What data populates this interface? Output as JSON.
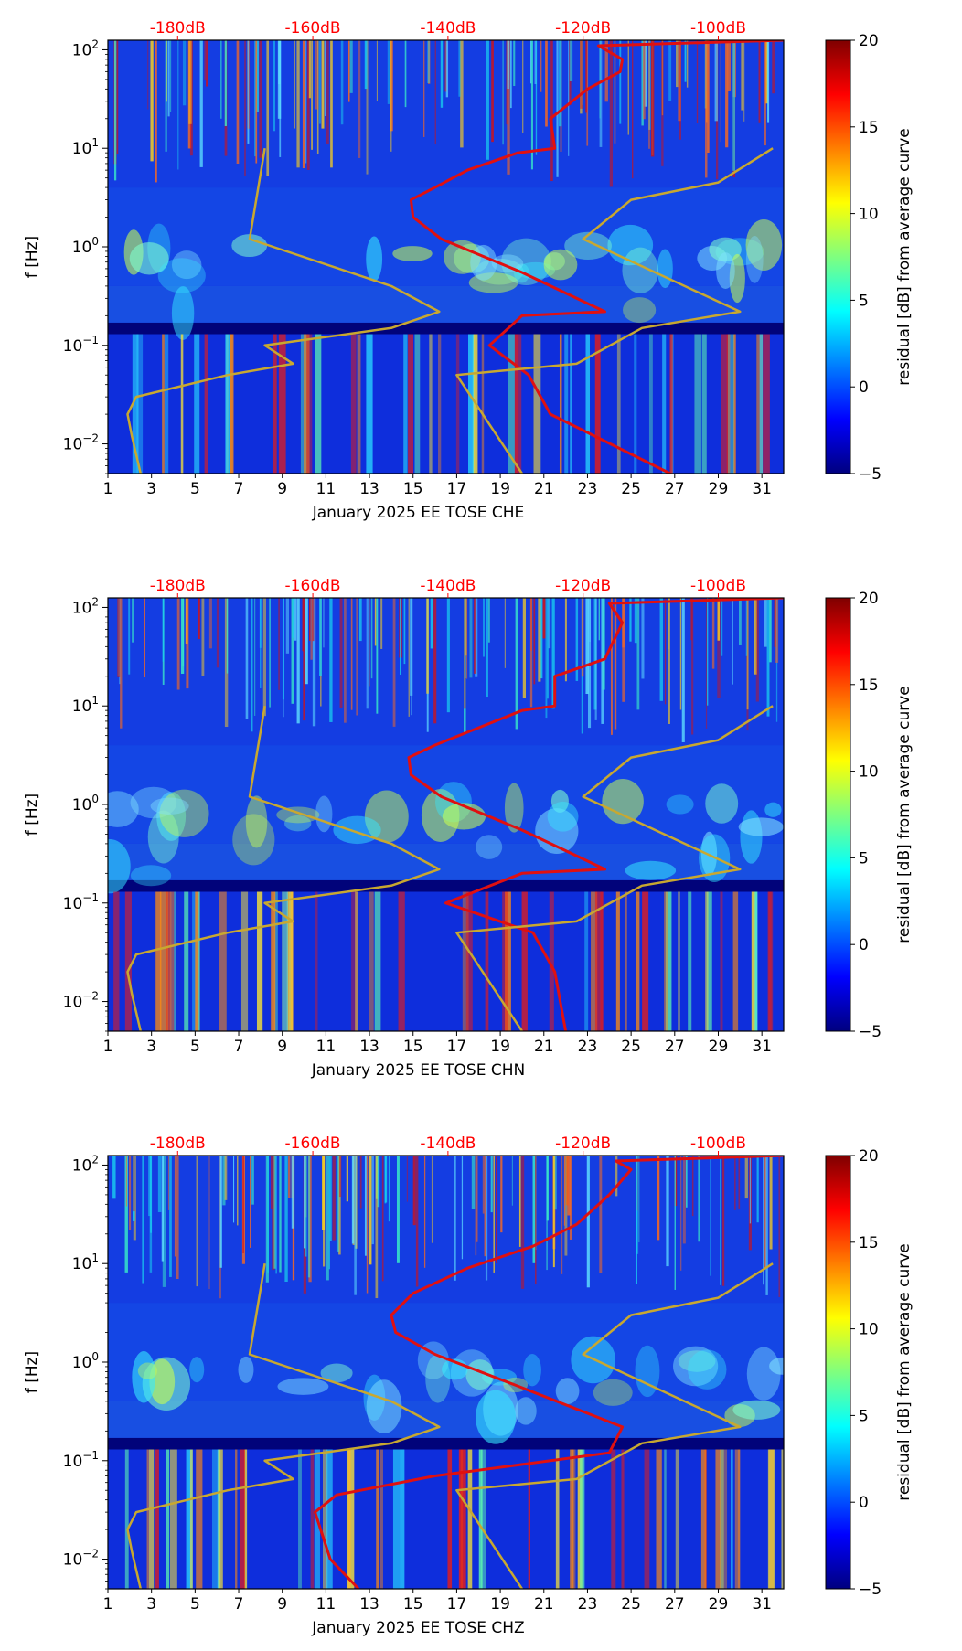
{
  "colors": {
    "top_axis_label": "#ff0000",
    "red_curve": "#e01010",
    "model_curve": "#c8a830",
    "colormap": [
      "#00007f",
      "#0000ff",
      "#007fff",
      "#00ffff",
      "#7fff7f",
      "#ffff00",
      "#ff7f00",
      "#ff0000",
      "#7f0000"
    ]
  },
  "chart_data": [
    {
      "type": "heatmap",
      "channel": "CHE",
      "xlabel": "January 2025 EE TOSE  CHE",
      "ylabel": "f [Hz]",
      "x_ticks": [
        "1",
        "3",
        "5",
        "7",
        "9",
        "11",
        "13",
        "15",
        "17",
        "19",
        "21",
        "23",
        "25",
        "27",
        "29",
        "31"
      ],
      "xlim": [
        1,
        32
      ],
      "y_scale": "log",
      "ylim": [
        0.005,
        125
      ],
      "y_ticks": [
        {
          "value": 0.01,
          "base": "10",
          "exp": "−2"
        },
        {
          "value": 0.1,
          "base": "10",
          "exp": "−1"
        },
        {
          "value": 1,
          "base": "10",
          "exp": "0"
        },
        {
          "value": 10,
          "base": "10",
          "exp": "1"
        },
        {
          "value": 100,
          "base": "10",
          "exp": "2"
        }
      ],
      "top_axis_ticks": [
        "-180dB",
        "-160dB",
        "-140dB",
        "-120dB",
        "-100dB"
      ],
      "top_axis_positions": [
        4.2,
        10.4,
        16.6,
        22.8,
        29.0
      ],
      "colorbar": {
        "label": "residual [dB] from average curve",
        "range": [
          -5,
          20
        ],
        "ticks": [
          "−5",
          "0",
          "5",
          "10",
          "15",
          "20"
        ]
      },
      "series": [
        {
          "name": "red curve",
          "points": [
            [
              26.8,
              0.005
            ],
            [
              21.3,
              0.02
            ],
            [
              20.3,
              0.05
            ],
            [
              18.5,
              0.1
            ],
            [
              20.0,
              0.2
            ],
            [
              23.8,
              0.22
            ],
            [
              20.0,
              0.55
            ],
            [
              16.3,
              1.2
            ],
            [
              15.0,
              2.0
            ],
            [
              14.9,
              3.0
            ],
            [
              16.0,
              4.0
            ],
            [
              17.5,
              6.0
            ],
            [
              19.8,
              9.0
            ],
            [
              21.5,
              10
            ],
            [
              21.3,
              20
            ],
            [
              23.0,
              40
            ],
            [
              24.5,
              60
            ],
            [
              24.6,
              80
            ],
            [
              23.5,
              110
            ],
            [
              32,
              125
            ]
          ]
        },
        {
          "name": "model curve",
          "points": [
            [
              2.5,
              0.005
            ],
            [
              2.1,
              0.012
            ],
            [
              1.9,
              0.02
            ],
            [
              2.3,
              0.03
            ],
            [
              6.5,
              0.05
            ],
            [
              9.5,
              0.065
            ],
            [
              8.2,
              0.1
            ],
            [
              14.0,
              0.15
            ],
            [
              16.2,
              0.22
            ],
            [
              14.0,
              0.4
            ],
            [
              7.5,
              1.2
            ],
            [
              8.2,
              10
            ],
            [
              null,
              null
            ],
            [
              20.0,
              0.005
            ],
            [
              17.0,
              0.05
            ],
            [
              22.5,
              0.065
            ],
            [
              25.5,
              0.15
            ],
            [
              30.0,
              0.22
            ],
            [
              22.8,
              1.2
            ],
            [
              25.0,
              3.0
            ],
            [
              29.0,
              4.5
            ],
            [
              31.5,
              10
            ]
          ]
        }
      ]
    },
    {
      "type": "heatmap",
      "channel": "CHN",
      "xlabel": "January 2025 EE TOSE  CHN",
      "ylabel": "f [Hz]",
      "x_ticks": [
        "1",
        "3",
        "5",
        "7",
        "9",
        "11",
        "13",
        "15",
        "17",
        "19",
        "21",
        "23",
        "25",
        "27",
        "29",
        "31"
      ],
      "xlim": [
        1,
        32
      ],
      "y_scale": "log",
      "ylim": [
        0.005,
        125
      ],
      "y_ticks": [
        {
          "value": 0.01,
          "base": "10",
          "exp": "−2"
        },
        {
          "value": 0.1,
          "base": "10",
          "exp": "−1"
        },
        {
          "value": 1,
          "base": "10",
          "exp": "0"
        },
        {
          "value": 10,
          "base": "10",
          "exp": "1"
        },
        {
          "value": 100,
          "base": "10",
          "exp": "2"
        }
      ],
      "top_axis_ticks": [
        "-180dB",
        "-160dB",
        "-140dB",
        "-120dB",
        "-100dB"
      ],
      "top_axis_positions": [
        4.2,
        10.4,
        16.6,
        22.8,
        29.0
      ],
      "colorbar": {
        "label": "residual [dB] from average curve",
        "range": [
          -5,
          20
        ],
        "ticks": [
          "−5",
          "0",
          "5",
          "10",
          "15",
          "20"
        ]
      },
      "series": [
        {
          "name": "red curve",
          "points": [
            [
              22.0,
              0.005
            ],
            [
              21.5,
              0.02
            ],
            [
              20.5,
              0.05
            ],
            [
              16.5,
              0.1
            ],
            [
              20.0,
              0.2
            ],
            [
              23.8,
              0.22
            ],
            [
              20.0,
              0.55
            ],
            [
              16.3,
              1.2
            ],
            [
              14.9,
              2.0
            ],
            [
              14.8,
              3.0
            ],
            [
              16.0,
              4.0
            ],
            [
              18.0,
              6.0
            ],
            [
              20.0,
              9.0
            ],
            [
              21.5,
              10
            ],
            [
              21.5,
              20
            ],
            [
              23.8,
              30
            ],
            [
              24.6,
              70
            ],
            [
              24.0,
              110
            ],
            [
              32,
              125
            ]
          ]
        },
        {
          "name": "model curve",
          "points": [
            [
              2.5,
              0.005
            ],
            [
              2.1,
              0.012
            ],
            [
              1.9,
              0.02
            ],
            [
              2.3,
              0.03
            ],
            [
              6.5,
              0.05
            ],
            [
              9.5,
              0.065
            ],
            [
              8.2,
              0.1
            ],
            [
              14.0,
              0.15
            ],
            [
              16.2,
              0.22
            ],
            [
              14.0,
              0.4
            ],
            [
              7.5,
              1.2
            ],
            [
              8.2,
              10
            ],
            [
              null,
              null
            ],
            [
              20.0,
              0.005
            ],
            [
              17.0,
              0.05
            ],
            [
              22.5,
              0.065
            ],
            [
              25.5,
              0.15
            ],
            [
              30.0,
              0.22
            ],
            [
              22.8,
              1.2
            ],
            [
              25.0,
              3.0
            ],
            [
              29.0,
              4.5
            ],
            [
              31.5,
              10
            ]
          ]
        }
      ]
    },
    {
      "type": "heatmap",
      "channel": "CHZ",
      "xlabel": "January 2025 EE TOSE  CHZ",
      "ylabel": "f [Hz]",
      "x_ticks": [
        "1",
        "3",
        "5",
        "7",
        "9",
        "11",
        "13",
        "15",
        "17",
        "19",
        "21",
        "23",
        "25",
        "27",
        "29",
        "31"
      ],
      "xlim": [
        1,
        32
      ],
      "y_scale": "log",
      "ylim": [
        0.005,
        125
      ],
      "y_ticks": [
        {
          "value": 0.01,
          "base": "10",
          "exp": "−2"
        },
        {
          "value": 0.1,
          "base": "10",
          "exp": "−1"
        },
        {
          "value": 1,
          "base": "10",
          "exp": "0"
        },
        {
          "value": 10,
          "base": "10",
          "exp": "1"
        },
        {
          "value": 100,
          "base": "10",
          "exp": "2"
        }
      ],
      "top_axis_ticks": [
        "-180dB",
        "-160dB",
        "-140dB",
        "-120dB",
        "-100dB"
      ],
      "top_axis_positions": [
        4.2,
        10.4,
        16.6,
        22.8,
        29.0
      ],
      "colorbar": {
        "label": "residual [dB] from average curve",
        "range": [
          -5,
          20
        ],
        "ticks": [
          "−5",
          "0",
          "5",
          "10",
          "15",
          "20"
        ]
      },
      "series": [
        {
          "name": "red curve",
          "points": [
            [
              12.5,
              0.005
            ],
            [
              11.2,
              0.01
            ],
            [
              10.5,
              0.03
            ],
            [
              11.5,
              0.045
            ],
            [
              16.0,
              0.07
            ],
            [
              24.0,
              0.12
            ],
            [
              24.6,
              0.22
            ],
            [
              20.0,
              0.55
            ],
            [
              16.0,
              1.2
            ],
            [
              14.2,
              2.0
            ],
            [
              14.0,
              3.0
            ],
            [
              15.0,
              5.0
            ],
            [
              17.5,
              9.0
            ],
            [
              20.5,
              15
            ],
            [
              22.5,
              25
            ],
            [
              24.0,
              50
            ],
            [
              25.0,
              90
            ],
            [
              24.3,
              110
            ],
            [
              32,
              125
            ]
          ]
        },
        {
          "name": "model curve",
          "points": [
            [
              2.5,
              0.005
            ],
            [
              2.1,
              0.012
            ],
            [
              1.9,
              0.02
            ],
            [
              2.3,
              0.03
            ],
            [
              6.5,
              0.05
            ],
            [
              9.5,
              0.065
            ],
            [
              8.2,
              0.1
            ],
            [
              14.0,
              0.15
            ],
            [
              16.2,
              0.22
            ],
            [
              14.0,
              0.4
            ],
            [
              7.5,
              1.2
            ],
            [
              8.2,
              10
            ],
            [
              null,
              null
            ],
            [
              20.0,
              0.005
            ],
            [
              17.0,
              0.05
            ],
            [
              22.5,
              0.065
            ],
            [
              25.5,
              0.15
            ],
            [
              30.0,
              0.22
            ],
            [
              22.8,
              1.2
            ],
            [
              25.0,
              3.0
            ],
            [
              29.0,
              4.5
            ],
            [
              31.5,
              10
            ]
          ]
        }
      ]
    }
  ]
}
